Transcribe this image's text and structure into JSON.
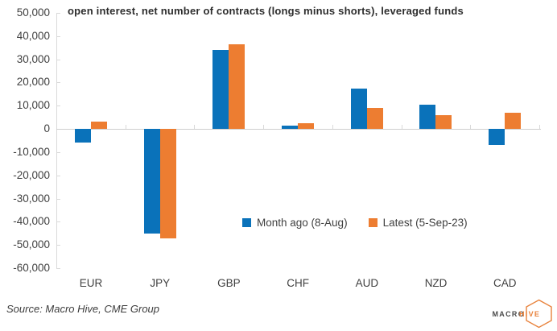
{
  "chart_data": {
    "type": "bar",
    "title": "open interest, net number of contracts (longs minus shorts), leveraged funds",
    "categories": [
      "EUR",
      "JPY",
      "GBP",
      "CHF",
      "AUD",
      "NZD",
      "CAD"
    ],
    "series": [
      {
        "name": "Month ago (8-Aug)",
        "color": "#0a72ba",
        "values": [
          -6000,
          -45000,
          34000,
          1500,
          17500,
          10500,
          -7000
        ]
      },
      {
        "name": "Latest (5-Sep-23)",
        "color": "#ed7d31",
        "values": [
          3000,
          -47000,
          36500,
          2500,
          9000,
          6000,
          7000
        ]
      }
    ],
    "ylim": [
      -60000,
      50000
    ],
    "ytick_step": 10000,
    "grid": false,
    "zero_line": true,
    "legend_position": "inside-bottom-right",
    "axis_color": "#d9d9d9",
    "text_color": "#404040"
  },
  "footer": {
    "source": "Source: Macro Hive, CME Group",
    "logo_macro": "MACRO",
    "logo_hive": "HIVE"
  }
}
